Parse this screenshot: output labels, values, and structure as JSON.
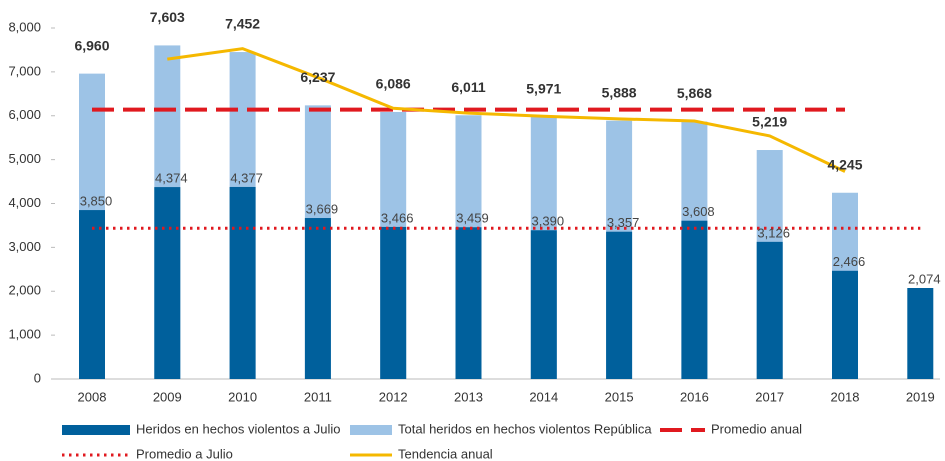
{
  "chart_data": {
    "type": "bar",
    "categories": [
      "2008",
      "2009",
      "2010",
      "2011",
      "2012",
      "2013",
      "2014",
      "2015",
      "2016",
      "2017",
      "2018",
      "2019"
    ],
    "ylim": [
      0,
      8000
    ],
    "yticks": [
      0,
      {
        "value": 1000,
        "label": "1,000"
      },
      {
        "value": 2000,
        "label": "2,000"
      },
      {
        "value": 3000,
        "label": "3,000"
      },
      {
        "value": 4000,
        "label": "4,000"
      },
      {
        "value": 5000,
        "label": "5,000"
      },
      {
        "value": 6000,
        "label": "6,000"
      },
      {
        "value": 7000,
        "label": "7,000"
      },
      {
        "value": 8000,
        "label": "8,000"
      }
    ],
    "series": [
      {
        "name": "Total heridos en hechos violentos República",
        "type": "bar",
        "color": "#9dc3e6",
        "values": [
          6960,
          7603,
          7452,
          6237,
          6086,
          6011,
          5971,
          5888,
          5868,
          5219,
          4245,
          null
        ],
        "value_labels": [
          "6,960",
          "7,603",
          "7,452",
          "6,237",
          "6,086",
          "6,011",
          "5,971",
          "5,888",
          "5,868",
          "5,219",
          "4,245",
          null
        ]
      },
      {
        "name": "Heridos en hechos violentos a Julio",
        "type": "bar",
        "color": "#00609c",
        "values": [
          3850,
          4374,
          4377,
          3669,
          3466,
          3459,
          3390,
          3357,
          3608,
          3126,
          2466,
          2074
        ],
        "value_labels": [
          "3,850",
          "4,374",
          "4,377",
          "3,669",
          "3,466",
          "3,459",
          "3,390",
          "3,357",
          "3,608",
          "3,126",
          "2,466",
          "2,074"
        ]
      },
      {
        "name": "Promedio anual",
        "type": "line",
        "dash": "dashed",
        "color": "#e0191f",
        "values": [
          6140,
          6140,
          6140,
          6140,
          6140,
          6140,
          6140,
          6140,
          6140,
          6140,
          6140,
          null
        ]
      },
      {
        "name": "Promedio a Julio",
        "type": "line",
        "dash": "dotted",
        "color": "#e0191f",
        "values": [
          3435,
          3435,
          3435,
          3435,
          3435,
          3435,
          3435,
          3435,
          3435,
          3435,
          3435,
          3435
        ]
      },
      {
        "name": "Tendencia anual",
        "type": "line",
        "dash": "solid",
        "color": "#f5b800",
        "values": [
          null,
          7290,
          7530,
          6870,
          6170,
          6060,
          5990,
          5930,
          5880,
          5540,
          4730,
          null
        ]
      }
    ]
  }
}
